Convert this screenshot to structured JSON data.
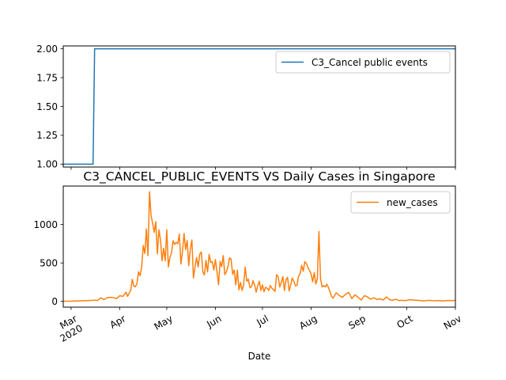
{
  "chart_data": [
    {
      "type": "line",
      "title": "",
      "xlabel": "",
      "ylabel": "",
      "ylim": [
        0.975,
        2.025
      ],
      "yticks": [
        "1.00",
        "1.25",
        "1.50",
        "1.75",
        "2.00"
      ],
      "legend": "upper right",
      "grid": false,
      "series": [
        {
          "name": "C3_Cancel public events",
          "color": "#1f77b4",
          "x": [
            "2020-02-25",
            "2020-03-15",
            "2020-03-16",
            "2020-11-01"
          ],
          "values": [
            1,
            1,
            2,
            2
          ]
        }
      ]
    },
    {
      "type": "line",
      "title": "C3_CANCEL_PUBLIC_EVENTS VS Daily Cases in Singapore",
      "xlabel": "Date",
      "ylabel": "",
      "ylim": [
        -75,
        1500
      ],
      "yticks": [
        "0",
        "500",
        "1000"
      ],
      "xticks": [
        {
          "date": "2020-03-01",
          "label": "Mar",
          "sub": "2020"
        },
        {
          "date": "2020-04-01",
          "label": "Apr",
          "sub": ""
        },
        {
          "date": "2020-05-01",
          "label": "May",
          "sub": ""
        },
        {
          "date": "2020-06-01",
          "label": "Jun",
          "sub": ""
        },
        {
          "date": "2020-07-01",
          "label": "Jul",
          "sub": ""
        },
        {
          "date": "2020-08-01",
          "label": "Aug",
          "sub": ""
        },
        {
          "date": "2020-09-01",
          "label": "Sep",
          "sub": ""
        },
        {
          "date": "2020-10-01",
          "label": "Oct",
          "sub": ""
        },
        {
          "date": "2020-11-01",
          "label": "Nov",
          "sub": ""
        }
      ],
      "legend": "upper right",
      "grid": false,
      "series": [
        {
          "name": "new_cases",
          "color": "#ff7f0e",
          "x": [
            "2020-02-25",
            "2020-03-01",
            "2020-03-05",
            "2020-03-10",
            "2020-03-14",
            "2020-03-16",
            "2020-03-18",
            "2020-03-20",
            "2020-03-22",
            "2020-03-24",
            "2020-03-26",
            "2020-03-28",
            "2020-03-30",
            "2020-04-01",
            "2020-04-03",
            "2020-04-05",
            "2020-04-06",
            "2020-04-07",
            "2020-04-08",
            "2020-04-09",
            "2020-04-10",
            "2020-04-11",
            "2020-04-12",
            "2020-04-13",
            "2020-04-14",
            "2020-04-15",
            "2020-04-16",
            "2020-04-17",
            "2020-04-18",
            "2020-04-19",
            "2020-04-20",
            "2020-04-21",
            "2020-04-22",
            "2020-04-23",
            "2020-04-24",
            "2020-04-25",
            "2020-04-26",
            "2020-04-27",
            "2020-04-28",
            "2020-04-29",
            "2020-04-30",
            "2020-05-01",
            "2020-05-02",
            "2020-05-03",
            "2020-05-04",
            "2020-05-05",
            "2020-05-06",
            "2020-05-07",
            "2020-05-08",
            "2020-05-09",
            "2020-05-10",
            "2020-05-11",
            "2020-05-12",
            "2020-05-13",
            "2020-05-14",
            "2020-05-15",
            "2020-05-16",
            "2020-05-17",
            "2020-05-18",
            "2020-05-19",
            "2020-05-20",
            "2020-05-21",
            "2020-05-22",
            "2020-05-23",
            "2020-05-24",
            "2020-05-25",
            "2020-05-26",
            "2020-05-27",
            "2020-05-28",
            "2020-05-29",
            "2020-05-30",
            "2020-05-31",
            "2020-06-01",
            "2020-06-02",
            "2020-06-03",
            "2020-06-04",
            "2020-06-05",
            "2020-06-06",
            "2020-06-07",
            "2020-06-08",
            "2020-06-09",
            "2020-06-10",
            "2020-06-11",
            "2020-06-12",
            "2020-06-13",
            "2020-06-14",
            "2020-06-15",
            "2020-06-16",
            "2020-06-17",
            "2020-06-18",
            "2020-06-19",
            "2020-06-20",
            "2020-06-21",
            "2020-06-22",
            "2020-06-23",
            "2020-06-24",
            "2020-06-25",
            "2020-06-26",
            "2020-06-27",
            "2020-06-28",
            "2020-06-29",
            "2020-06-30",
            "2020-07-01",
            "2020-07-02",
            "2020-07-03",
            "2020-07-04",
            "2020-07-05",
            "2020-07-06",
            "2020-07-07",
            "2020-07-08",
            "2020-07-09",
            "2020-07-10",
            "2020-07-11",
            "2020-07-12",
            "2020-07-13",
            "2020-07-14",
            "2020-07-15",
            "2020-07-16",
            "2020-07-17",
            "2020-07-18",
            "2020-07-19",
            "2020-07-20",
            "2020-07-21",
            "2020-07-22",
            "2020-07-23",
            "2020-07-24",
            "2020-07-25",
            "2020-07-26",
            "2020-07-27",
            "2020-07-28",
            "2020-07-29",
            "2020-07-30",
            "2020-07-31",
            "2020-08-01",
            "2020-08-02",
            "2020-08-03",
            "2020-08-04",
            "2020-08-05",
            "2020-08-06",
            "2020-08-07",
            "2020-08-08",
            "2020-08-09",
            "2020-08-10",
            "2020-08-11",
            "2020-08-12",
            "2020-08-13",
            "2020-08-14",
            "2020-08-15",
            "2020-08-17",
            "2020-08-19",
            "2020-08-21",
            "2020-08-23",
            "2020-08-25",
            "2020-08-27",
            "2020-08-29",
            "2020-08-31",
            "2020-09-02",
            "2020-09-04",
            "2020-09-06",
            "2020-09-08",
            "2020-09-10",
            "2020-09-12",
            "2020-09-14",
            "2020-09-16",
            "2020-09-18",
            "2020-09-20",
            "2020-09-22",
            "2020-09-24",
            "2020-09-26",
            "2020-09-28",
            "2020-09-30",
            "2020-10-03",
            "2020-10-06",
            "2020-10-09",
            "2020-10-12",
            "2020-10-15",
            "2020-10-18",
            "2020-10-21",
            "2020-10-24",
            "2020-10-27",
            "2020-10-30",
            "2020-11-01"
          ],
          "values": [
            2,
            3,
            6,
            10,
            12,
            17,
            13,
            47,
            23,
            49,
            52,
            49,
            35,
            74,
            65,
            120,
            66,
            106,
            142,
            287,
            198,
            191,
            233,
            386,
            334,
            447,
            728,
            623,
            942,
            596,
            1426,
            1111,
            1016,
            897,
            1037,
            618,
            931,
            799,
            528,
            690,
            528,
            932,
            447,
            573,
            632,
            788,
            741,
            768,
            750,
            876,
            486,
            647,
            884,
            675,
            793,
            465,
            682,
            799,
            305,
            451,
            570,
            448,
            614,
            642,
            382,
            344,
            533,
            383,
            611,
            506,
            518,
            408,
            544,
            386,
            218,
            518,
            451,
            595,
            347,
            386,
            451,
            566,
            549,
            352,
            407,
            214,
            407,
            151,
            247,
            142,
            218,
            448,
            262,
            289,
            180,
            191,
            268,
            213,
            120,
            205,
            262,
            142,
            215,
            126,
            183,
            171,
            143,
            207,
            170,
            154,
            130,
            347,
            322,
            187,
            247,
            321,
            141,
            281,
            313,
            136,
            214,
            304,
            263,
            203,
            209,
            327,
            359,
            469,
            392,
            517,
            493,
            441,
            402,
            359,
            254,
            376,
            226,
            293,
            908,
            300,
            187,
            205,
            188,
            223,
            183,
            128,
            66,
            42,
            112,
            76,
            53,
            94,
            116,
            35,
            86,
            53,
            18,
            75,
            58,
            29,
            47,
            25,
            33,
            18,
            58,
            23,
            15,
            29,
            11,
            14,
            10,
            23,
            16,
            12,
            6,
            14,
            8,
            11,
            5,
            12,
            9,
            14
          ]
        }
      ]
    }
  ]
}
